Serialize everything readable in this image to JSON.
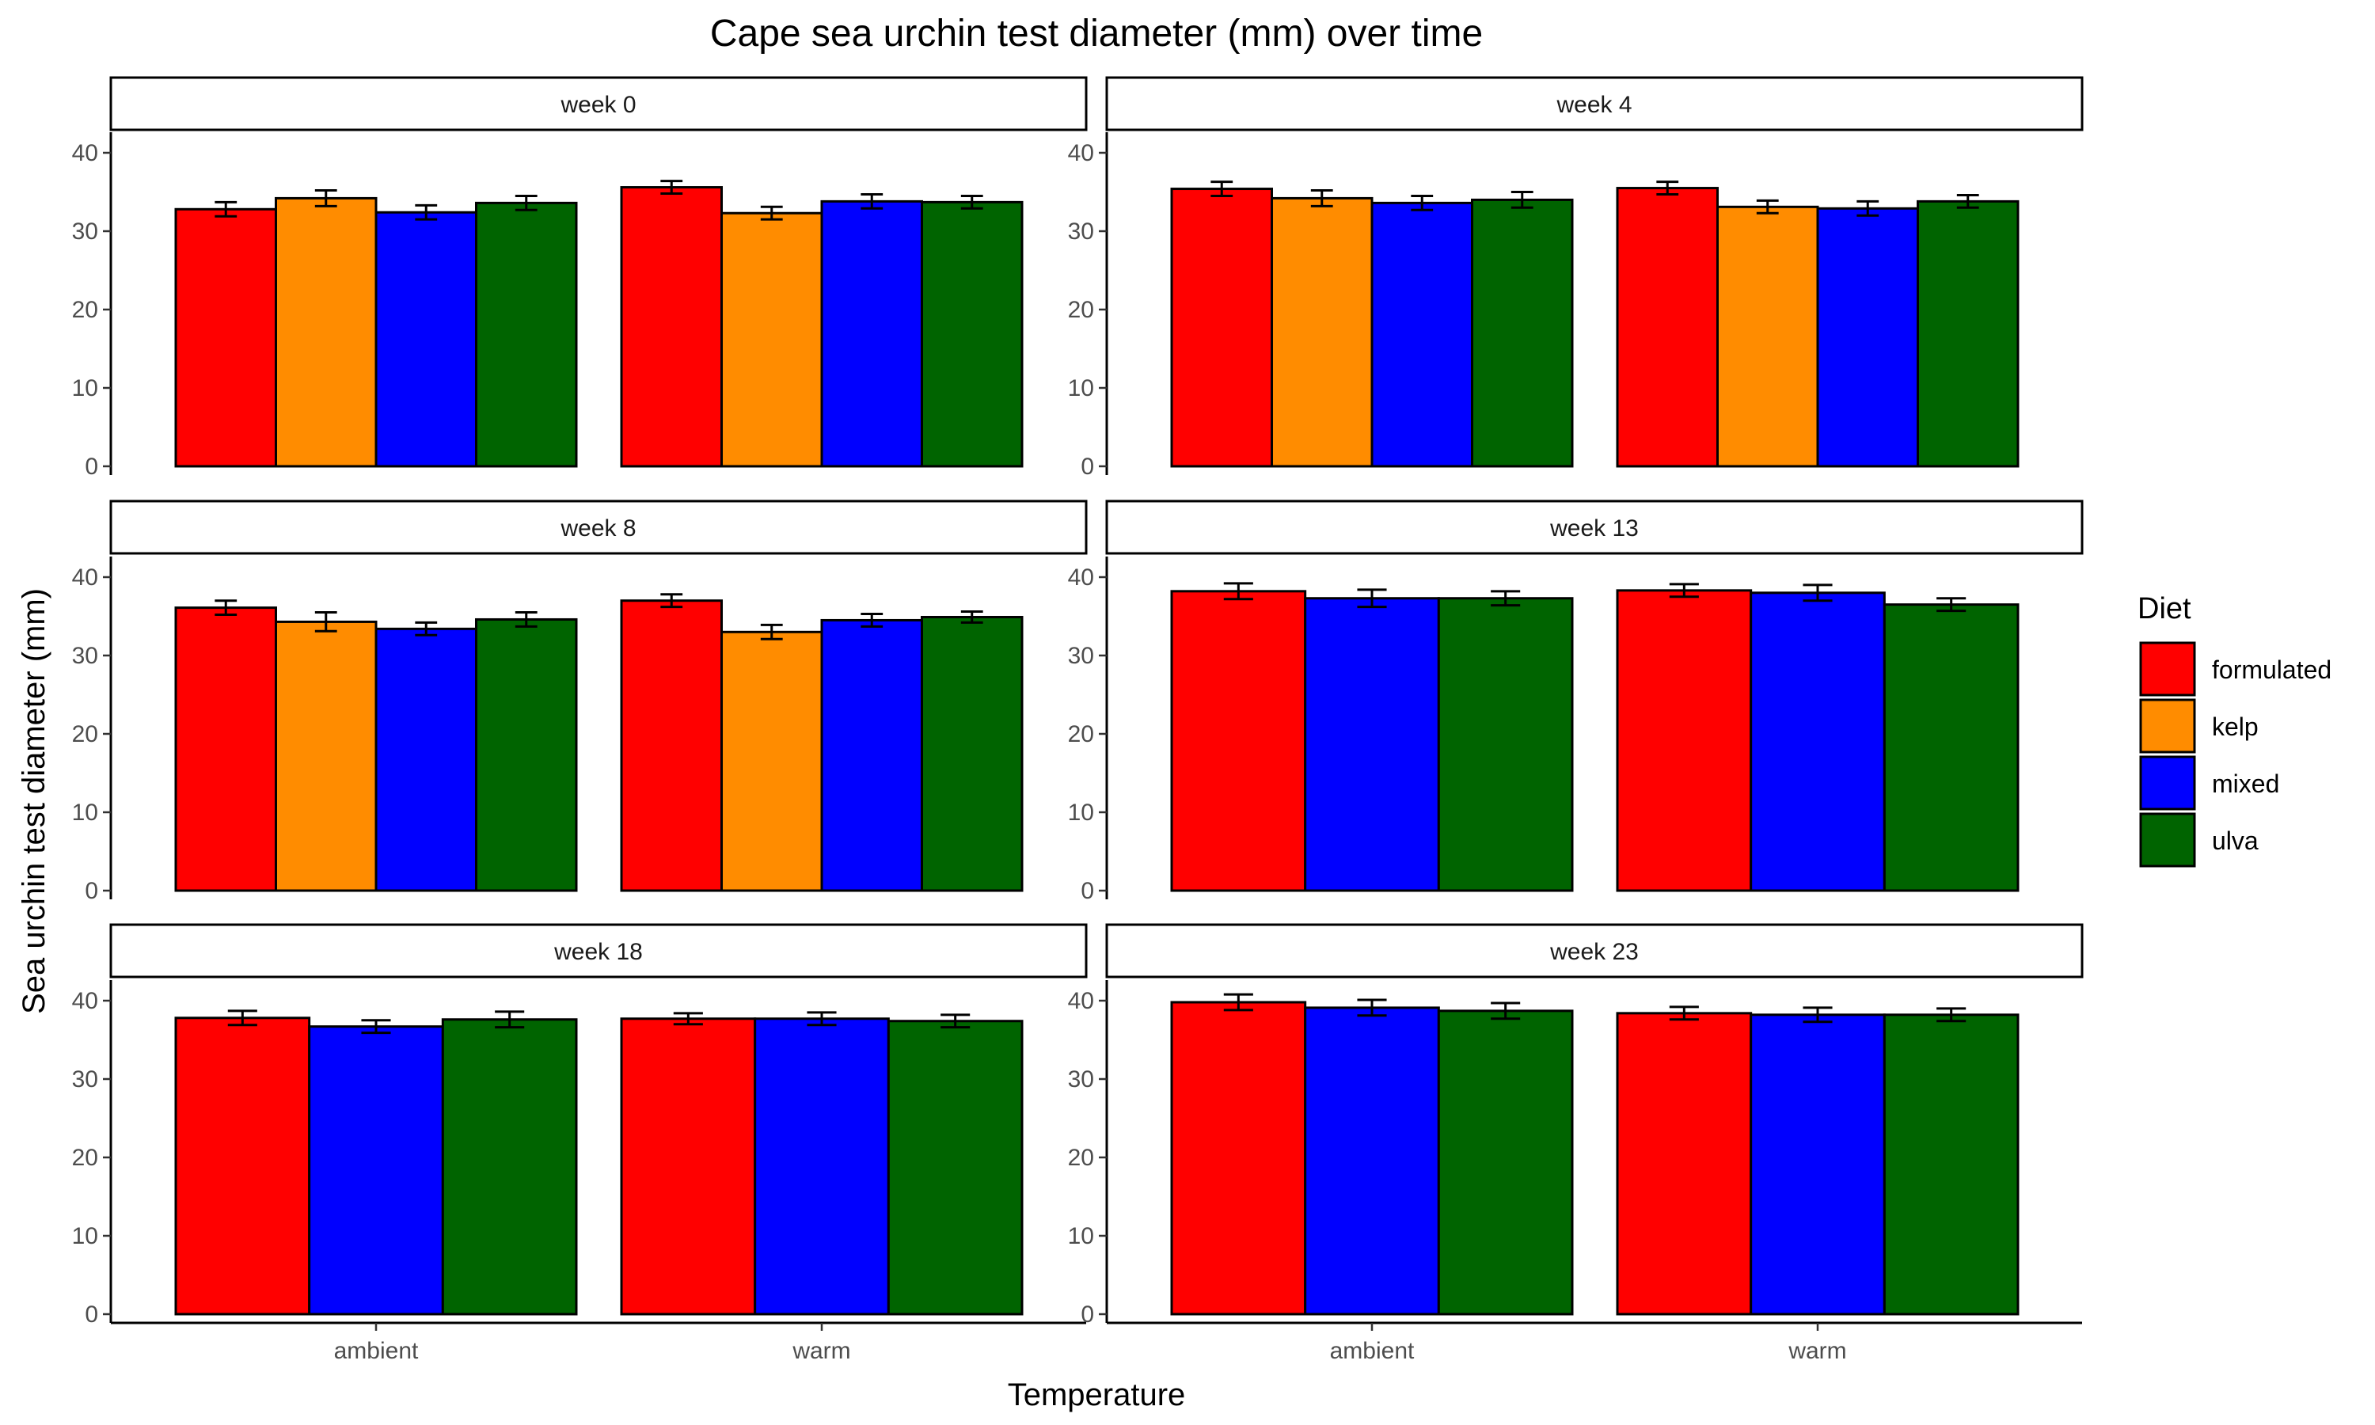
{
  "chart_data": {
    "type": "bar",
    "title": "Cape sea urchin test diameter (mm) over time",
    "xlabel": "Temperature",
    "ylabel": "Sea urchin test diameter (mm)",
    "categories": [
      "ambient",
      "warm"
    ],
    "ylim": [
      0,
      40
    ],
    "yticks": [
      0,
      10,
      20,
      30,
      40
    ],
    "legend": {
      "title": "Diet",
      "position": "right",
      "entries": [
        {
          "name": "formulated",
          "color": "#FF0000"
        },
        {
          "name": "kelp",
          "color": "#FF8C00"
        },
        {
          "name": "mixed",
          "color": "#0000FF"
        },
        {
          "name": "ulva",
          "color": "#006400"
        }
      ]
    },
    "grid": false,
    "facets": [
      {
        "label": "week 0",
        "groups": [
          {
            "category": "ambient",
            "bars": [
              {
                "diet": "formulated",
                "value": 32.8,
                "error": 0.9
              },
              {
                "diet": "kelp",
                "value": 34.2,
                "error": 1.0
              },
              {
                "diet": "mixed",
                "value": 32.4,
                "error": 0.9
              },
              {
                "diet": "ulva",
                "value": 33.6,
                "error": 0.9
              }
            ]
          },
          {
            "category": "warm",
            "bars": [
              {
                "diet": "formulated",
                "value": 35.6,
                "error": 0.8
              },
              {
                "diet": "kelp",
                "value": 32.3,
                "error": 0.8
              },
              {
                "diet": "mixed",
                "value": 33.8,
                "error": 0.9
              },
              {
                "diet": "ulva",
                "value": 33.7,
                "error": 0.8
              }
            ]
          }
        ]
      },
      {
        "label": "week 4",
        "groups": [
          {
            "category": "ambient",
            "bars": [
              {
                "diet": "formulated",
                "value": 35.4,
                "error": 0.9
              },
              {
                "diet": "kelp",
                "value": 34.2,
                "error": 1.0
              },
              {
                "diet": "mixed",
                "value": 33.6,
                "error": 0.9
              },
              {
                "diet": "ulva",
                "value": 34.0,
                "error": 1.0
              }
            ]
          },
          {
            "category": "warm",
            "bars": [
              {
                "diet": "formulated",
                "value": 35.5,
                "error": 0.8
              },
              {
                "diet": "kelp",
                "value": 33.1,
                "error": 0.8
              },
              {
                "diet": "mixed",
                "value": 32.9,
                "error": 0.9
              },
              {
                "diet": "ulva",
                "value": 33.8,
                "error": 0.8
              }
            ]
          }
        ]
      },
      {
        "label": "week 8",
        "groups": [
          {
            "category": "ambient",
            "bars": [
              {
                "diet": "formulated",
                "value": 36.1,
                "error": 0.9
              },
              {
                "diet": "kelp",
                "value": 34.3,
                "error": 1.2
              },
              {
                "diet": "mixed",
                "value": 33.4,
                "error": 0.8
              },
              {
                "diet": "ulva",
                "value": 34.6,
                "error": 0.9
              }
            ]
          },
          {
            "category": "warm",
            "bars": [
              {
                "diet": "formulated",
                "value": 37.0,
                "error": 0.8
              },
              {
                "diet": "kelp",
                "value": 33.0,
                "error": 0.9
              },
              {
                "diet": "mixed",
                "value": 34.5,
                "error": 0.8
              },
              {
                "diet": "ulva",
                "value": 34.9,
                "error": 0.7
              }
            ]
          }
        ]
      },
      {
        "label": "week 13",
        "groups": [
          {
            "category": "ambient",
            "bars": [
              {
                "diet": "formulated",
                "value": 38.2,
                "error": 1.0
              },
              {
                "diet": "mixed",
                "value": 37.3,
                "error": 1.1
              },
              {
                "diet": "ulva",
                "value": 37.3,
                "error": 0.9
              }
            ]
          },
          {
            "category": "warm",
            "bars": [
              {
                "diet": "formulated",
                "value": 38.3,
                "error": 0.8
              },
              {
                "diet": "mixed",
                "value": 38.0,
                "error": 1.0
              },
              {
                "diet": "ulva",
                "value": 36.5,
                "error": 0.8
              }
            ]
          }
        ]
      },
      {
        "label": "week 18",
        "groups": [
          {
            "category": "ambient",
            "bars": [
              {
                "diet": "formulated",
                "value": 37.8,
                "error": 0.9
              },
              {
                "diet": "mixed",
                "value": 36.7,
                "error": 0.8
              },
              {
                "diet": "ulva",
                "value": 37.6,
                "error": 1.0
              }
            ]
          },
          {
            "category": "warm",
            "bars": [
              {
                "diet": "formulated",
                "value": 37.7,
                "error": 0.7
              },
              {
                "diet": "mixed",
                "value": 37.7,
                "error": 0.8
              },
              {
                "diet": "ulva",
                "value": 37.4,
                "error": 0.8
              }
            ]
          }
        ]
      },
      {
        "label": "week 23",
        "groups": [
          {
            "category": "ambient",
            "bars": [
              {
                "diet": "formulated",
                "value": 39.8,
                "error": 1.0
              },
              {
                "diet": "mixed",
                "value": 39.1,
                "error": 1.0
              },
              {
                "diet": "ulva",
                "value": 38.7,
                "error": 1.0
              }
            ]
          },
          {
            "category": "warm",
            "bars": [
              {
                "diet": "formulated",
                "value": 38.4,
                "error": 0.8
              },
              {
                "diet": "mixed",
                "value": 38.2,
                "error": 0.9
              },
              {
                "diet": "ulva",
                "value": 38.2,
                "error": 0.8
              }
            ]
          }
        ]
      }
    ]
  }
}
